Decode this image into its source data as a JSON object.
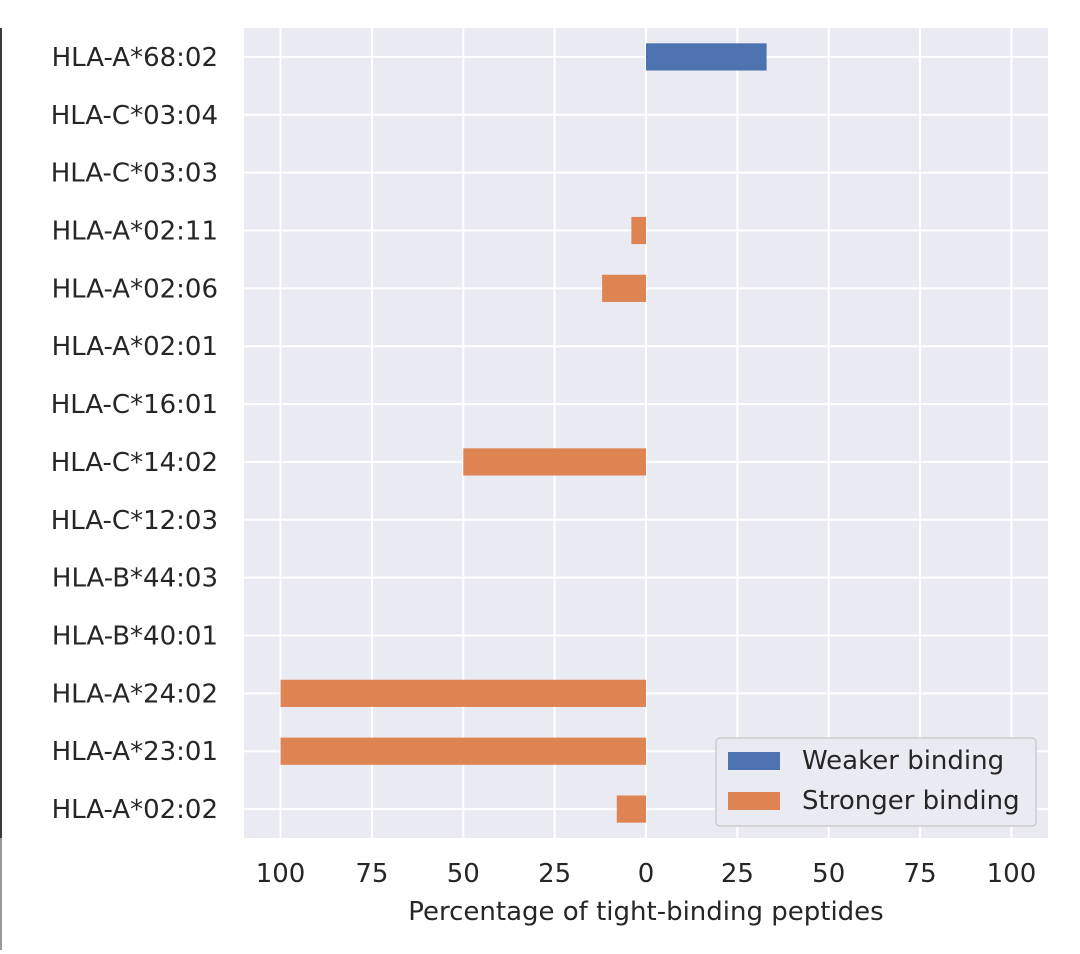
{
  "chart_data": {
    "type": "bar",
    "orientation": "horizontal",
    "xlabel": "Percentage of tight-binding peptides",
    "xlim": [
      -110,
      110
    ],
    "xticks": [
      -100,
      -75,
      -50,
      -25,
      0,
      25,
      50,
      75,
      100
    ],
    "xtick_labels": [
      "100",
      "75",
      "50",
      "25",
      "0",
      "25",
      "50",
      "75",
      "100"
    ],
    "grid": true,
    "legend_position": "bottom-right",
    "categories": [
      "HLA-A*68:02",
      "HLA-C*03:04",
      "HLA-C*03:03",
      "HLA-A*02:11",
      "HLA-A*02:06",
      "HLA-A*02:01",
      "HLA-C*16:01",
      "HLA-C*14:02",
      "HLA-C*12:03",
      "HLA-B*44:03",
      "HLA-B*40:01",
      "HLA-A*24:02",
      "HLA-A*23:01",
      "HLA-A*02:02"
    ],
    "series": [
      {
        "name": "Weaker binding",
        "color": "#4c72b0",
        "values": [
          33,
          0,
          0,
          0,
          0,
          0,
          0,
          0,
          0,
          0,
          0,
          0,
          0,
          0
        ]
      },
      {
        "name": "Stronger binding",
        "color": "#dd8452",
        "values": [
          0,
          0,
          0,
          -4,
          -12,
          0,
          0,
          -50,
          0,
          0,
          0,
          -100,
          -100,
          -8
        ]
      }
    ]
  }
}
